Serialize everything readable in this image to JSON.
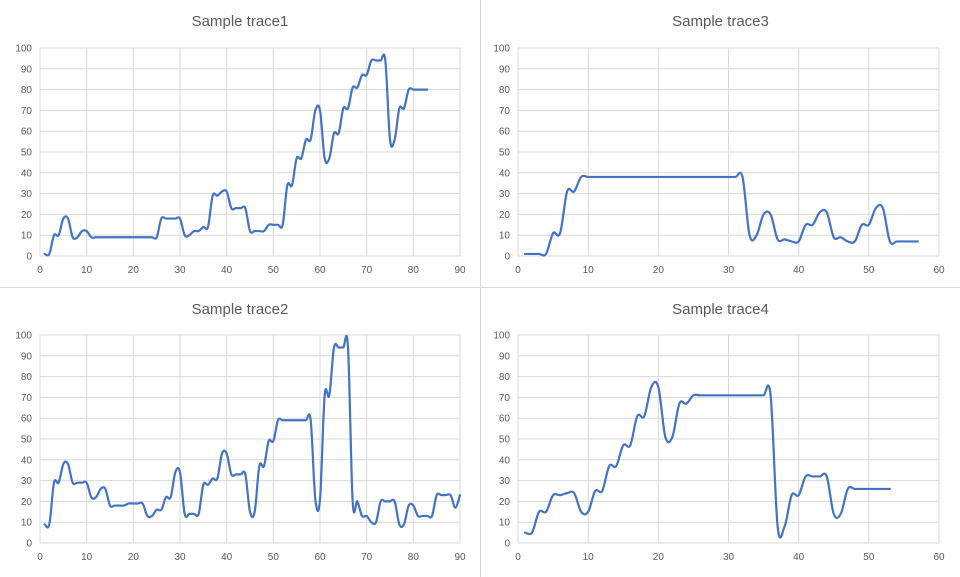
{
  "chart_data": [
    {
      "type": "line",
      "title": "Sample trace1",
      "xlim": [
        0,
        90
      ],
      "ylim": [
        0,
        100
      ],
      "xticks": [
        0,
        10,
        20,
        30,
        40,
        50,
        60,
        70,
        80,
        90
      ],
      "yticks": [
        0,
        10,
        20,
        30,
        40,
        50,
        60,
        70,
        80,
        90,
        100
      ],
      "grid": true,
      "series": [
        {
          "color": "#4472c4",
          "x": [
            1,
            2,
            3,
            4,
            5,
            6,
            7,
            8,
            9,
            10,
            11,
            12,
            13,
            14,
            15,
            16,
            17,
            18,
            19,
            20,
            21,
            22,
            23,
            24,
            25,
            26,
            27,
            28,
            29,
            30,
            31,
            32,
            33,
            34,
            35,
            36,
            37,
            38,
            39,
            40,
            41,
            42,
            43,
            44,
            45,
            46,
            47,
            48,
            49,
            50,
            51,
            52,
            53,
            54,
            55,
            56,
            57,
            58,
            59,
            60,
            61,
            62,
            63,
            64,
            65,
            66,
            67,
            68,
            69,
            70,
            71,
            72,
            73,
            74,
            75,
            76,
            77,
            78,
            79,
            80,
            81,
            82,
            83
          ],
          "y": [
            1,
            1,
            10,
            10,
            18,
            18,
            9,
            9,
            12,
            12,
            9,
            9,
            9,
            9,
            9,
            9,
            9,
            9,
            9,
            9,
            9,
            9,
            9,
            9,
            9,
            18,
            18,
            18,
            18,
            18,
            10,
            10,
            12,
            12,
            14,
            14,
            29,
            29,
            31,
            31,
            23,
            23,
            23,
            23,
            12,
            12,
            12,
            12,
            15,
            15,
            15,
            15,
            34,
            34,
            47,
            47,
            56,
            56,
            70,
            70,
            47,
            47,
            59,
            59,
            71,
            71,
            81,
            81,
            87,
            87,
            94,
            94,
            94,
            94,
            56,
            56,
            71,
            71,
            80,
            80,
            80,
            80,
            80
          ]
        }
      ]
    },
    {
      "type": "line",
      "title": "Sample trace3",
      "xlim": [
        0,
        60
      ],
      "ylim": [
        0,
        100
      ],
      "xticks": [
        0,
        10,
        20,
        30,
        40,
        50,
        60
      ],
      "yticks": [
        0,
        10,
        20,
        30,
        40,
        50,
        60,
        70,
        80,
        90,
        100
      ],
      "grid": true,
      "series": [
        {
          "color": "#4472c4",
          "x": [
            1,
            2,
            3,
            4,
            5,
            6,
            7,
            8,
            9,
            10,
            11,
            12,
            13,
            14,
            15,
            16,
            17,
            18,
            19,
            20,
            21,
            22,
            23,
            24,
            25,
            26,
            27,
            28,
            29,
            30,
            31,
            32,
            33,
            34,
            35,
            36,
            37,
            38,
            39,
            40,
            41,
            42,
            43,
            44,
            45,
            46,
            47,
            48,
            49,
            50,
            51,
            52,
            53,
            54,
            55,
            56,
            57
          ],
          "y": [
            1,
            1,
            1,
            1,
            11,
            11,
            31,
            31,
            38,
            38,
            38,
            38,
            38,
            38,
            38,
            38,
            38,
            38,
            38,
            38,
            38,
            38,
            38,
            38,
            38,
            38,
            38,
            38,
            38,
            38,
            38,
            38,
            10,
            10,
            20,
            20,
            8,
            8,
            7,
            7,
            15,
            15,
            21,
            21,
            9,
            9,
            7,
            7,
            15,
            15,
            23,
            23,
            7,
            7,
            7,
            7,
            7
          ]
        }
      ]
    },
    {
      "type": "line",
      "title": "Sample trace2",
      "xlim": [
        0,
        90
      ],
      "ylim": [
        0,
        100
      ],
      "xticks": [
        0,
        10,
        20,
        30,
        40,
        50,
        60,
        70,
        80,
        90
      ],
      "yticks": [
        0,
        10,
        20,
        30,
        40,
        50,
        60,
        70,
        80,
        90,
        100
      ],
      "grid": true,
      "series": [
        {
          "color": "#4472c4",
          "x": [
            1,
            2,
            3,
            4,
            5,
            6,
            7,
            8,
            9,
            10,
            11,
            12,
            13,
            14,
            15,
            16,
            17,
            18,
            19,
            20,
            21,
            22,
            23,
            24,
            25,
            26,
            27,
            28,
            29,
            30,
            31,
            32,
            33,
            34,
            35,
            36,
            37,
            38,
            39,
            40,
            41,
            42,
            43,
            44,
            45,
            46,
            47,
            48,
            49,
            50,
            51,
            52,
            53,
            54,
            55,
            56,
            57,
            58,
            59,
            60,
            61,
            62,
            63,
            64,
            65,
            66,
            67,
            68,
            69,
            70,
            71,
            72,
            73,
            74,
            75,
            76,
            77,
            78,
            79,
            80,
            81,
            82,
            83,
            84,
            85,
            86,
            87,
            88,
            89,
            90
          ],
          "y": [
            9,
            9,
            29,
            29,
            38,
            38,
            29,
            29,
            29,
            29,
            22,
            22,
            26,
            26,
            18,
            18,
            18,
            18,
            19,
            19,
            19,
            19,
            13,
            13,
            16,
            16,
            22,
            22,
            34,
            34,
            14,
            14,
            14,
            14,
            28,
            28,
            31,
            31,
            43,
            43,
            33,
            33,
            33,
            33,
            15,
            15,
            37,
            37,
            49,
            49,
            59,
            59,
            59,
            59,
            59,
            59,
            59,
            59,
            21,
            21,
            71,
            71,
            94,
            94,
            94,
            94,
            20,
            20,
            13,
            13,
            10,
            10,
            20,
            20,
            20,
            20,
            9,
            9,
            18,
            18,
            13,
            13,
            13,
            13,
            23,
            23,
            23,
            23,
            17,
            23
          ]
        }
      ]
    },
    {
      "type": "line",
      "title": "Sample trace4",
      "xlim": [
        0,
        60
      ],
      "ylim": [
        0,
        100
      ],
      "xticks": [
        0,
        10,
        20,
        30,
        40,
        50,
        60
      ],
      "yticks": [
        0,
        10,
        20,
        30,
        40,
        50,
        60,
        70,
        80,
        90,
        100
      ],
      "grid": true,
      "series": [
        {
          "color": "#4472c4",
          "x": [
            1,
            2,
            3,
            4,
            5,
            6,
            7,
            8,
            9,
            10,
            11,
            12,
            13,
            14,
            15,
            16,
            17,
            18,
            19,
            20,
            21,
            22,
            23,
            24,
            25,
            26,
            27,
            28,
            29,
            30,
            31,
            32,
            33,
            34,
            35,
            36,
            37,
            38,
            39,
            40,
            41,
            42,
            43,
            44,
            45,
            46,
            47,
            48,
            49,
            50,
            51,
            52,
            53
          ],
          "y": [
            5,
            5,
            15,
            15,
            23,
            23,
            24,
            24,
            15,
            15,
            25,
            25,
            37,
            37,
            47,
            47,
            61,
            61,
            75,
            75,
            51,
            51,
            67,
            67,
            71,
            71,
            71,
            71,
            71,
            71,
            71,
            71,
            71,
            71,
            71,
            71,
            8,
            8,
            23,
            23,
            32,
            32,
            32,
            32,
            14,
            14,
            26,
            26,
            26,
            26,
            26,
            26,
            26
          ]
        }
      ]
    }
  ]
}
